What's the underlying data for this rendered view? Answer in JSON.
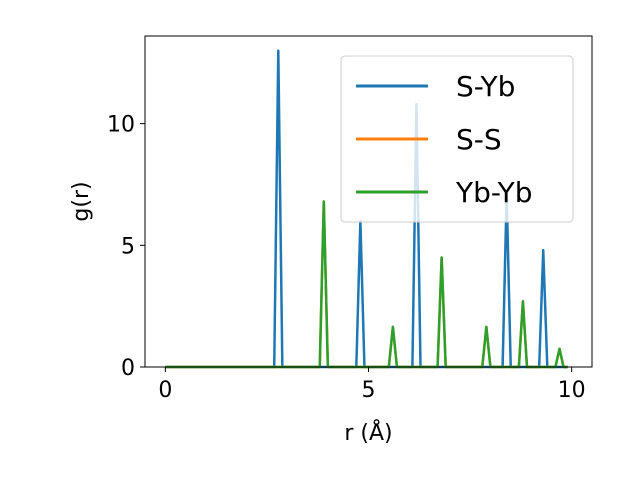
{
  "chart_data": {
    "type": "line",
    "xlabel": "r (Å)",
    "ylabel": "g(r)",
    "xlim": [
      -0.5,
      10.5
    ],
    "ylim": [
      0,
      13.6
    ],
    "x_ticks": [
      0,
      5,
      10
    ],
    "y_ticks": [
      0,
      5,
      10
    ],
    "legend_position": "upper right",
    "series": [
      {
        "name": "S-Yb",
        "color": "#1f77b4",
        "peaks": [
          {
            "r": 2.78,
            "g": 13.0
          },
          {
            "r": 4.8,
            "g": 6.0
          },
          {
            "r": 6.18,
            "g": 10.8
          },
          {
            "r": 8.4,
            "g": 7.1
          },
          {
            "r": 9.3,
            "g": 4.8
          }
        ]
      },
      {
        "name": "S-S",
        "color": "#ff7f0e",
        "peaks": [
          {
            "r": 3.9,
            "g": 6.8
          },
          {
            "r": 5.6,
            "g": 1.65
          },
          {
            "r": 6.8,
            "g": 4.5
          },
          {
            "r": 7.9,
            "g": 1.65
          },
          {
            "r": 8.8,
            "g": 2.7
          },
          {
            "r": 9.7,
            "g": 0.75
          }
        ]
      },
      {
        "name": "Yb-Yb",
        "color": "#2ca02c",
        "peaks": [
          {
            "r": 3.9,
            "g": 6.8
          },
          {
            "r": 5.6,
            "g": 1.65
          },
          {
            "r": 6.8,
            "g": 4.5
          },
          {
            "r": 7.9,
            "g": 1.65
          },
          {
            "r": 8.8,
            "g": 2.7
          },
          {
            "r": 9.7,
            "g": 0.75
          }
        ]
      }
    ]
  }
}
